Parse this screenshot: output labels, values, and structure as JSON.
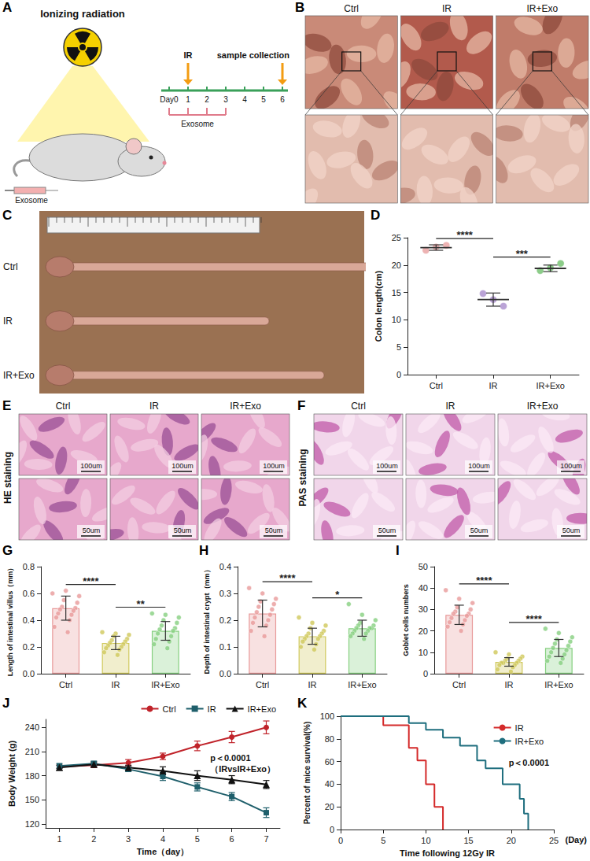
{
  "figures": [
    {
      "panel": "A",
      "type": "schematic",
      "title": "Ionizing radiation",
      "injection": "Exosome",
      "events": [
        {
          "label": "IR",
          "at": "1"
        },
        {
          "label": "sample collection",
          "at": "6"
        }
      ],
      "timeline": [
        "Day0",
        "1",
        "2",
        "3",
        "4",
        "5",
        "6"
      ],
      "treatment": "Exosome",
      "treatment_days": [
        "Day0",
        "1",
        "2",
        "3"
      ]
    },
    {
      "panel": "B",
      "type": "photo",
      "columns": [
        "Ctrl",
        "IR",
        "IR+Exo"
      ]
    },
    {
      "panel": "C",
      "type": "photo",
      "rows": [
        "Ctrl",
        "IR",
        "IR+Exo"
      ]
    },
    {
      "panel": "E",
      "type": "photo",
      "title": "HE staining",
      "columns": [
        "Ctrl",
        "IR",
        "IR+Exo"
      ],
      "scale_bars": [
        "100um",
        "50um"
      ]
    },
    {
      "panel": "F",
      "type": "photo",
      "title": "PAS staining",
      "columns": [
        "Ctrl",
        "IR",
        "IR+Exo"
      ],
      "scale_bars": [
        "100um",
        "50um"
      ]
    }
  ],
  "chart_data": [
    {
      "panel": "D",
      "type": "scatter",
      "y_label": "Colon length(cm)",
      "categories": [
        "Ctrl",
        "IR",
        "IR+Exo"
      ],
      "values": [
        23.2,
        13.7,
        19.4
      ],
      "errors": [
        0.5,
        1.2,
        0.6
      ],
      "points": [
        [
          22.7,
          23.3,
          23.6
        ],
        [
          14.8,
          13.7,
          12.5
        ],
        [
          19.0,
          19.5,
          20.3
        ]
      ],
      "colors": [
        "#e8a0a0",
        "#a98ccc",
        "#6fbf6c"
      ],
      "ylim": [
        0,
        25
      ],
      "yticks": [
        0,
        5,
        10,
        15,
        20,
        25
      ],
      "comparisons": [
        {
          "groups": [
            "Ctrl",
            "IR"
          ],
          "label": "****"
        },
        {
          "groups": [
            "IR",
            "IR+Exo"
          ],
          "label": "***"
        }
      ]
    },
    {
      "panel": "G",
      "type": "bar",
      "y_label": "Length of intestinal villus（mm）",
      "categories": [
        "Ctrl",
        "IR",
        "IR+Exo"
      ],
      "values": [
        0.49,
        0.23,
        0.32
      ],
      "errors": [
        0.09,
        0.05,
        0.07
      ],
      "points": [
        [
          0.6,
          0.62,
          0.58,
          0.55,
          0.53,
          0.5,
          0.49,
          0.48,
          0.47,
          0.45,
          0.44,
          0.42,
          0.4,
          0.35,
          0.31
        ],
        [
          0.31,
          0.3,
          0.29,
          0.28,
          0.26,
          0.25,
          0.24,
          0.23,
          0.22,
          0.21,
          0.2,
          0.19,
          0.18,
          0.16,
          0.14
        ],
        [
          0.45,
          0.44,
          0.42,
          0.4,
          0.38,
          0.36,
          0.34,
          0.33,
          0.32,
          0.3,
          0.28,
          0.26,
          0.24,
          0.22,
          0.19
        ]
      ],
      "colors": [
        "#e89a9a",
        "#cfc85a",
        "#86d080"
      ],
      "ylim": [
        0,
        0.8
      ],
      "yticks": [
        {
          "value": 0,
          "label": "0.0"
        },
        0.2,
        0.4,
        0.6,
        0.8
      ],
      "comparisons": [
        {
          "groups": [
            "Ctrl",
            "IR"
          ],
          "label": "****"
        },
        {
          "groups": [
            "IR",
            "IR+Exo"
          ],
          "label": "**"
        }
      ]
    },
    {
      "panel": "H",
      "type": "bar",
      "y_label": "Depth of intestinal crypt（mm）",
      "categories": [
        "Ctrl",
        "IR",
        "IR+Exo"
      ],
      "values": [
        0.225,
        0.14,
        0.17
      ],
      "errors": [
        0.05,
        0.03,
        0.03
      ],
      "points": [
        [
          0.32,
          0.3,
          0.28,
          0.27,
          0.26,
          0.25,
          0.24,
          0.23,
          0.22,
          0.21,
          0.2,
          0.19,
          0.18,
          0.16,
          0.14
        ],
        [
          0.21,
          0.19,
          0.18,
          0.17,
          0.16,
          0.15,
          0.15,
          0.14,
          0.14,
          0.13,
          0.13,
          0.12,
          0.11,
          0.1,
          0.09
        ],
        [
          0.26,
          0.22,
          0.2,
          0.19,
          0.18,
          0.18,
          0.17,
          0.17,
          0.17,
          0.16,
          0.16,
          0.15,
          0.15,
          0.14,
          0.13
        ]
      ],
      "colors": [
        "#e89a9a",
        "#cfc85a",
        "#86d080"
      ],
      "ylim": [
        0,
        0.4
      ],
      "yticks": [
        {
          "value": 0,
          "label": "0.0"
        },
        0.1,
        0.2,
        0.3,
        0.4
      ],
      "comparisons": [
        {
          "groups": [
            "Ctrl",
            "IR"
          ],
          "label": "****"
        },
        {
          "groups": [
            "IR",
            "IR+Exo"
          ],
          "label": "*"
        }
      ]
    },
    {
      "panel": "I",
      "type": "bar",
      "y_label": "Goblet cells numbers",
      "categories": [
        "Ctrl",
        "IR",
        "IR+Exo"
      ],
      "values": [
        27.5,
        5.5,
        12
      ],
      "errors": [
        4.5,
        2,
        4
      ],
      "points": [
        [
          39,
          35,
          33,
          31,
          30,
          29,
          28,
          28,
          27,
          26,
          25,
          24,
          23,
          22,
          20
        ],
        [
          10,
          9,
          8,
          7,
          7,
          6,
          6,
          5,
          5,
          5,
          4,
          4,
          3,
          2,
          1
        ],
        [
          21,
          19,
          17,
          16,
          15,
          14,
          13,
          12,
          11,
          10,
          9,
          8,
          7,
          6,
          5
        ]
      ],
      "colors": [
        "#e89a9a",
        "#cfc85a",
        "#86d080"
      ],
      "ylim": [
        0,
        50
      ],
      "yticks": [
        0,
        10,
        20,
        30,
        40,
        50
      ],
      "comparisons": [
        {
          "groups": [
            "Ctrl",
            "IR"
          ],
          "label": "****"
        },
        {
          "groups": [
            "IR",
            "IR+Exo"
          ],
          "label": "****"
        }
      ]
    },
    {
      "panel": "J",
      "type": "line",
      "x_label": "Time（day）",
      "y_label": "Body Weight (g)",
      "x": [
        1,
        2,
        3,
        4,
        5,
        6,
        7
      ],
      "series": [
        {
          "name": "Ctrl",
          "color": "#c0232a",
          "marker": "circle",
          "values": [
            191,
            193,
            196,
            204,
            217,
            228,
            240
          ],
          "errors": [
            2,
            3,
            4,
            4,
            6,
            7,
            8
          ]
        },
        {
          "name": "IR",
          "color": "#1f5f6b",
          "marker": "square",
          "values": [
            192,
            195,
            188,
            179,
            166,
            154,
            134
          ],
          "errors": [
            3,
            3,
            3,
            5,
            5,
            5,
            6
          ]
        },
        {
          "name": "IR+Exo",
          "color": "#111111",
          "marker": "triangle",
          "values": [
            190,
            194,
            190,
            186,
            180,
            175,
            169
          ],
          "errors": [
            3,
            3,
            3,
            5,
            6,
            5,
            5
          ]
        }
      ],
      "xlim": [
        0.6,
        7.4
      ],
      "xticks": [
        1,
        2,
        3,
        4,
        5,
        6,
        7
      ],
      "ylim": [
        115,
        250
      ],
      "yticks": [
        120,
        150,
        180,
        210,
        240
      ],
      "annotations": [
        "p＜0.0001",
        "（IRvsIR+Exo）"
      ],
      "legend": "upper right"
    },
    {
      "panel": "K",
      "type": "line",
      "line_style": "step",
      "x_label": "Time following 12Gy IR",
      "x_unit": "(Day)",
      "y_label": "Percent of mice survival(%)",
      "series": [
        {
          "name": "IR",
          "color": "#d42a2a",
          "marker": "none",
          "x": [
            0,
            5,
            8,
            9,
            10,
            11,
            12
          ],
          "values": [
            100,
            92,
            72,
            61,
            40,
            20,
            0
          ]
        },
        {
          "name": "IR+Exo",
          "color": "#1e6e7e",
          "marker": "none",
          "x": [
            0,
            8,
            10,
            12,
            14,
            16,
            17,
            19,
            21,
            21.5,
            22
          ],
          "values": [
            100,
            94,
            88,
            81,
            74,
            61,
            54,
            40,
            27,
            14,
            0
          ]
        }
      ],
      "xlim": [
        0,
        25
      ],
      "xticks": [
        0,
        5,
        10,
        15,
        20,
        25
      ],
      "ylim": [
        0,
        100
      ],
      "yticks": [
        0,
        20,
        40,
        60,
        80,
        100
      ],
      "annotations": [
        "p＜0.0001"
      ],
      "legend": "upper right"
    }
  ]
}
